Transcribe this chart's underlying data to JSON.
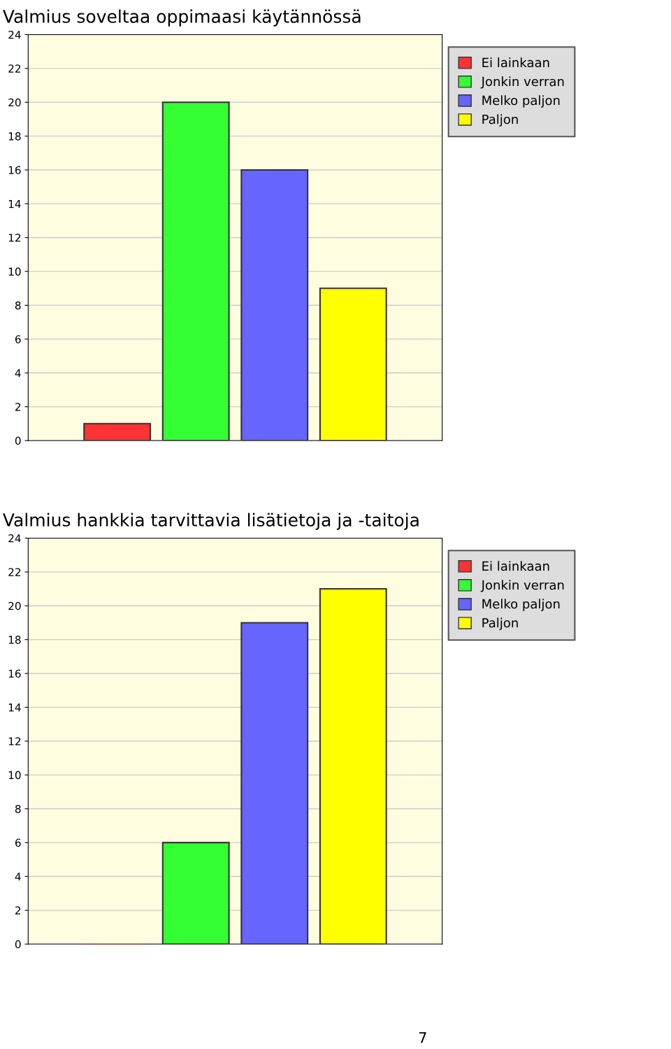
{
  "chart_data": [
    {
      "type": "bar",
      "title": "Valmius soveltaa oppimaasi käytännössä",
      "categories": [
        null
      ],
      "series": [
        {
          "name": "Ei lainkaan",
          "color": "#ff3333",
          "values": [
            1
          ]
        },
        {
          "name": "Jonkin verran",
          "color": "#33ff33",
          "values": [
            20
          ]
        },
        {
          "name": "Melko paljon",
          "color": "#6666ff",
          "values": [
            16
          ]
        },
        {
          "name": "Paljon",
          "color": "#ffff00",
          "values": [
            9
          ]
        }
      ],
      "ylim": [
        0,
        24
      ],
      "yticks": [
        0,
        2,
        4,
        6,
        8,
        10,
        12,
        14,
        16,
        18,
        20,
        22,
        24
      ],
      "grid": "y",
      "legend": "top right"
    },
    {
      "type": "bar",
      "title": "Valmius hankkia tarvittavia lisätietoja ja -taitoja",
      "categories": [
        null
      ],
      "series": [
        {
          "name": "Ei lainkaan",
          "color": "#ff3333",
          "values": [
            0
          ]
        },
        {
          "name": "Jonkin verran",
          "color": "#33ff33",
          "values": [
            6
          ]
        },
        {
          "name": "Melko paljon",
          "color": "#6666ff",
          "values": [
            19
          ]
        },
        {
          "name": "Paljon",
          "color": "#ffff00",
          "values": [
            21
          ]
        }
      ],
      "ylim": [
        0,
        24
      ],
      "yticks": [
        0,
        2,
        4,
        6,
        8,
        10,
        12,
        14,
        16,
        18,
        20,
        22,
        24
      ],
      "grid": "y",
      "legend": "top right",
      "annotations": [
        "7"
      ]
    }
  ]
}
